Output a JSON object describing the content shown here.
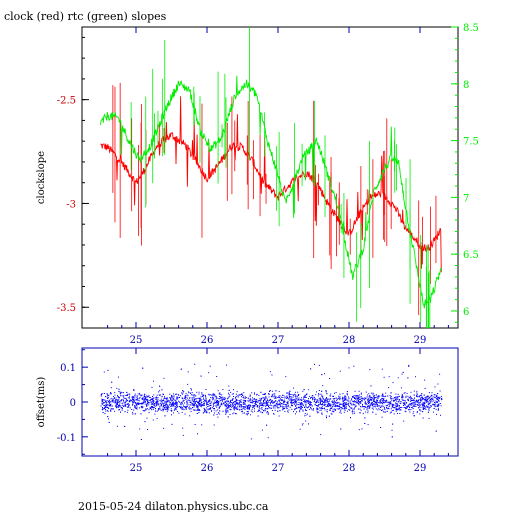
{
  "header": {
    "title": "clock (red) rtc (green) slopes",
    "footer": "2015-05-24 dilaton.physics.ubc.ca"
  },
  "colors": {
    "clock": "#ff0000",
    "rtc": "#00ee00",
    "offset": "#0000ff",
    "axis_blue": "#0000b0",
    "axis_black": "#000000",
    "label_red": "#cc0000"
  },
  "chart_data": [
    {
      "type": "line",
      "title": "clock (red) rtc (green) slopes",
      "xlabel": "",
      "ylabel": "clockslope",
      "xlim": [
        24.5,
        29.3
      ],
      "xticks": [
        25,
        26,
        27,
        28,
        29
      ],
      "ylim": [
        -3.6,
        -2.15
      ],
      "yticks": [
        -3.5,
        -3,
        -2.5
      ],
      "ytick_labels": [
        "-3.5",
        "-3",
        "-2.5"
      ],
      "y2lim": [
        5.85,
        8.5
      ],
      "y2ticks": [
        6,
        6.5,
        7,
        7.5,
        8,
        8.5
      ],
      "y2tick_labels": [
        "6",
        "6.5",
        "7",
        "7.5",
        "8",
        "8.5"
      ],
      "series": [
        {
          "name": "clock",
          "color": "#ff0000",
          "axis": "left",
          "x": [
            24.5,
            24.6,
            24.75,
            24.9,
            25.0,
            25.1,
            25.3,
            25.5,
            25.7,
            25.85,
            26.0,
            26.15,
            26.35,
            26.5,
            26.65,
            26.8,
            27.0,
            27.1,
            27.25,
            27.4,
            27.55,
            27.7,
            27.85,
            28.0,
            28.15,
            28.3,
            28.45,
            28.55,
            28.65,
            28.8,
            29.0,
            29.1,
            29.2,
            29.3
          ],
          "values": [
            -2.72,
            -2.73,
            -2.78,
            -2.85,
            -2.9,
            -2.85,
            -2.72,
            -2.67,
            -2.72,
            -2.8,
            -2.88,
            -2.82,
            -2.72,
            -2.73,
            -2.8,
            -2.9,
            -2.97,
            -2.93,
            -2.88,
            -2.85,
            -2.9,
            -3.0,
            -3.08,
            -3.15,
            -3.05,
            -2.97,
            -2.95,
            -2.98,
            -3.02,
            -3.12,
            -3.2,
            -3.22,
            -3.18,
            -3.12
          ]
        },
        {
          "name": "rtc",
          "color": "#00ee00",
          "axis": "right",
          "x": [
            24.5,
            24.6,
            24.75,
            24.9,
            25.05,
            25.2,
            25.45,
            25.6,
            25.75,
            25.9,
            26.05,
            26.2,
            26.4,
            26.55,
            26.7,
            26.85,
            27.0,
            27.1,
            27.2,
            27.35,
            27.55,
            27.7,
            27.85,
            27.95,
            28.05,
            28.2,
            28.35,
            28.5,
            28.6,
            28.7,
            28.8,
            28.95,
            29.05,
            29.15,
            29.3
          ],
          "values": [
            7.65,
            7.72,
            7.7,
            7.5,
            7.33,
            7.45,
            7.82,
            8.0,
            7.95,
            7.6,
            7.42,
            7.52,
            7.9,
            8.0,
            7.9,
            7.5,
            7.2,
            6.95,
            7.1,
            7.35,
            7.5,
            7.2,
            6.9,
            6.6,
            6.3,
            6.55,
            7.05,
            7.25,
            7.35,
            7.3,
            6.9,
            6.4,
            6.05,
            6.1,
            6.38
          ]
        }
      ]
    },
    {
      "type": "scatter",
      "xlabel": "",
      "ylabel": "offset(ms)",
      "xlim": [
        24.5,
        29.3
      ],
      "xticks": [
        25,
        26,
        27,
        28,
        29
      ],
      "ylim": [
        -0.155,
        0.155
      ],
      "yticks": [
        -0.1,
        0,
        0.1
      ],
      "ytick_labels": [
        "-0.1",
        "0",
        "0.1"
      ],
      "series": [
        {
          "name": "offset",
          "color": "#0000ff",
          "mean": 0.0,
          "band": [
            -0.03,
            0.03
          ]
        }
      ]
    }
  ]
}
